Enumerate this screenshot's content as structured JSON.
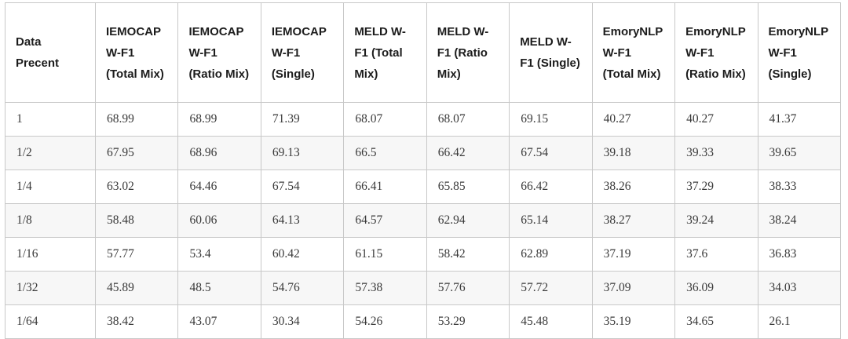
{
  "table": {
    "columns": [
      "Data Precent",
      "IEMOCAP W-F1 (Total Mix)",
      "IEMOCAP W-F1 (Ratio Mix)",
      "IEMOCAP W-F1 (Single)",
      "MELD W-F1 (Total Mix)",
      "MELD W-F1 (Ratio Mix)",
      "MELD W-F1 (Single)",
      "EmoryNLP W-F1 (Total Mix)",
      "EmoryNLP W-F1 (Ratio Mix)",
      "EmoryNLP W-F1 (Single)"
    ],
    "rows": [
      [
        "1",
        "68.99",
        "68.99",
        "71.39",
        "68.07",
        "68.07",
        "69.15",
        "40.27",
        "40.27",
        "41.37"
      ],
      [
        "1/2",
        "67.95",
        "68.96",
        "69.13",
        "66.5",
        "66.42",
        "67.54",
        "39.18",
        "39.33",
        "39.65"
      ],
      [
        "1/4",
        "63.02",
        "64.46",
        "67.54",
        "66.41",
        "65.85",
        "66.42",
        "38.26",
        "37.29",
        "38.33"
      ],
      [
        "1/8",
        "58.48",
        "60.06",
        "64.13",
        "64.57",
        "62.94",
        "65.14",
        "38.27",
        "39.24",
        "38.24"
      ],
      [
        "1/16",
        "57.77",
        "53.4",
        "60.42",
        "61.15",
        "58.42",
        "62.89",
        "37.19",
        "37.6",
        "36.83"
      ],
      [
        "1/32",
        "45.89",
        "48.5",
        "54.76",
        "57.38",
        "57.76",
        "57.72",
        "37.09",
        "36.09",
        "34.03"
      ],
      [
        "1/64",
        "38.42",
        "43.07",
        "30.34",
        "54.26",
        "53.29",
        "45.48",
        "35.19",
        "34.65",
        "26.1"
      ]
    ]
  },
  "colors": {
    "border": "#c8c8c8",
    "row_stripe": "#f7f7f7",
    "header_text": "#1c1c1c",
    "body_text": "#3a3a3a",
    "background": "#ffffff"
  },
  "chart_data": {
    "type": "table",
    "title": "",
    "columns": [
      "Data Precent",
      "IEMOCAP W-F1 (Total Mix)",
      "IEMOCAP W-F1 (Ratio Mix)",
      "IEMOCAP W-F1 (Single)",
      "MELD W-F1 (Total Mix)",
      "MELD W-F1 (Ratio Mix)",
      "MELD W-F1 (Single)",
      "EmoryNLP W-F1 (Total Mix)",
      "EmoryNLP W-F1 (Ratio Mix)",
      "EmoryNLP W-F1 (Single)"
    ],
    "rows": [
      [
        "1",
        68.99,
        68.99,
        71.39,
        68.07,
        68.07,
        69.15,
        40.27,
        40.27,
        41.37
      ],
      [
        "1/2",
        67.95,
        68.96,
        69.13,
        66.5,
        66.42,
        67.54,
        39.18,
        39.33,
        39.65
      ],
      [
        "1/4",
        63.02,
        64.46,
        67.54,
        66.41,
        65.85,
        66.42,
        38.26,
        37.29,
        38.33
      ],
      [
        "1/8",
        58.48,
        60.06,
        64.13,
        64.57,
        62.94,
        65.14,
        38.27,
        39.24,
        38.24
      ],
      [
        "1/16",
        57.77,
        53.4,
        60.42,
        61.15,
        58.42,
        62.89,
        37.19,
        37.6,
        36.83
      ],
      [
        "1/32",
        45.89,
        48.5,
        54.76,
        57.38,
        57.76,
        57.72,
        37.09,
        36.09,
        34.03
      ],
      [
        "1/64",
        38.42,
        43.07,
        30.34,
        54.26,
        53.29,
        45.48,
        35.19,
        34.65,
        26.1
      ]
    ]
  }
}
